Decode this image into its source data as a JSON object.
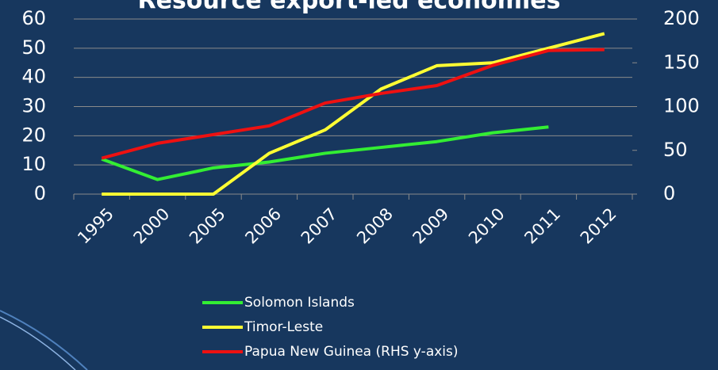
{
  "chart_data": {
    "type": "line",
    "title": "Resource export-led economies",
    "categories": [
      "1995",
      "2000",
      "2005",
      "2006",
      "2007",
      "2008",
      "2009",
      "2010",
      "2011",
      "2012"
    ],
    "series": [
      {
        "name": "Solomon Islands",
        "color": "#33ee33",
        "values": [
          12,
          5,
          9,
          11,
          14,
          16,
          18,
          21,
          23,
          null
        ]
      },
      {
        "name": "Timor-Leste",
        "color": "#ffff33",
        "values": [
          0,
          0,
          0,
          14,
          22,
          36,
          44,
          45,
          50,
          55
        ]
      },
      {
        "name": "Papua New Guinea (RHS y-axis)",
        "color": "#ee1111",
        "axis": "y2",
        "values": [
          41,
          58,
          68,
          78,
          104,
          115,
          124,
          147,
          164,
          165
        ]
      }
    ],
    "ylim": [
      0,
      60
    ],
    "yticks": [
      0,
      10,
      20,
      30,
      40,
      50,
      60
    ],
    "y2lim": [
      0,
      200
    ],
    "y2ticks": [
      0,
      50,
      100,
      150,
      200
    ],
    "grid": true
  }
}
